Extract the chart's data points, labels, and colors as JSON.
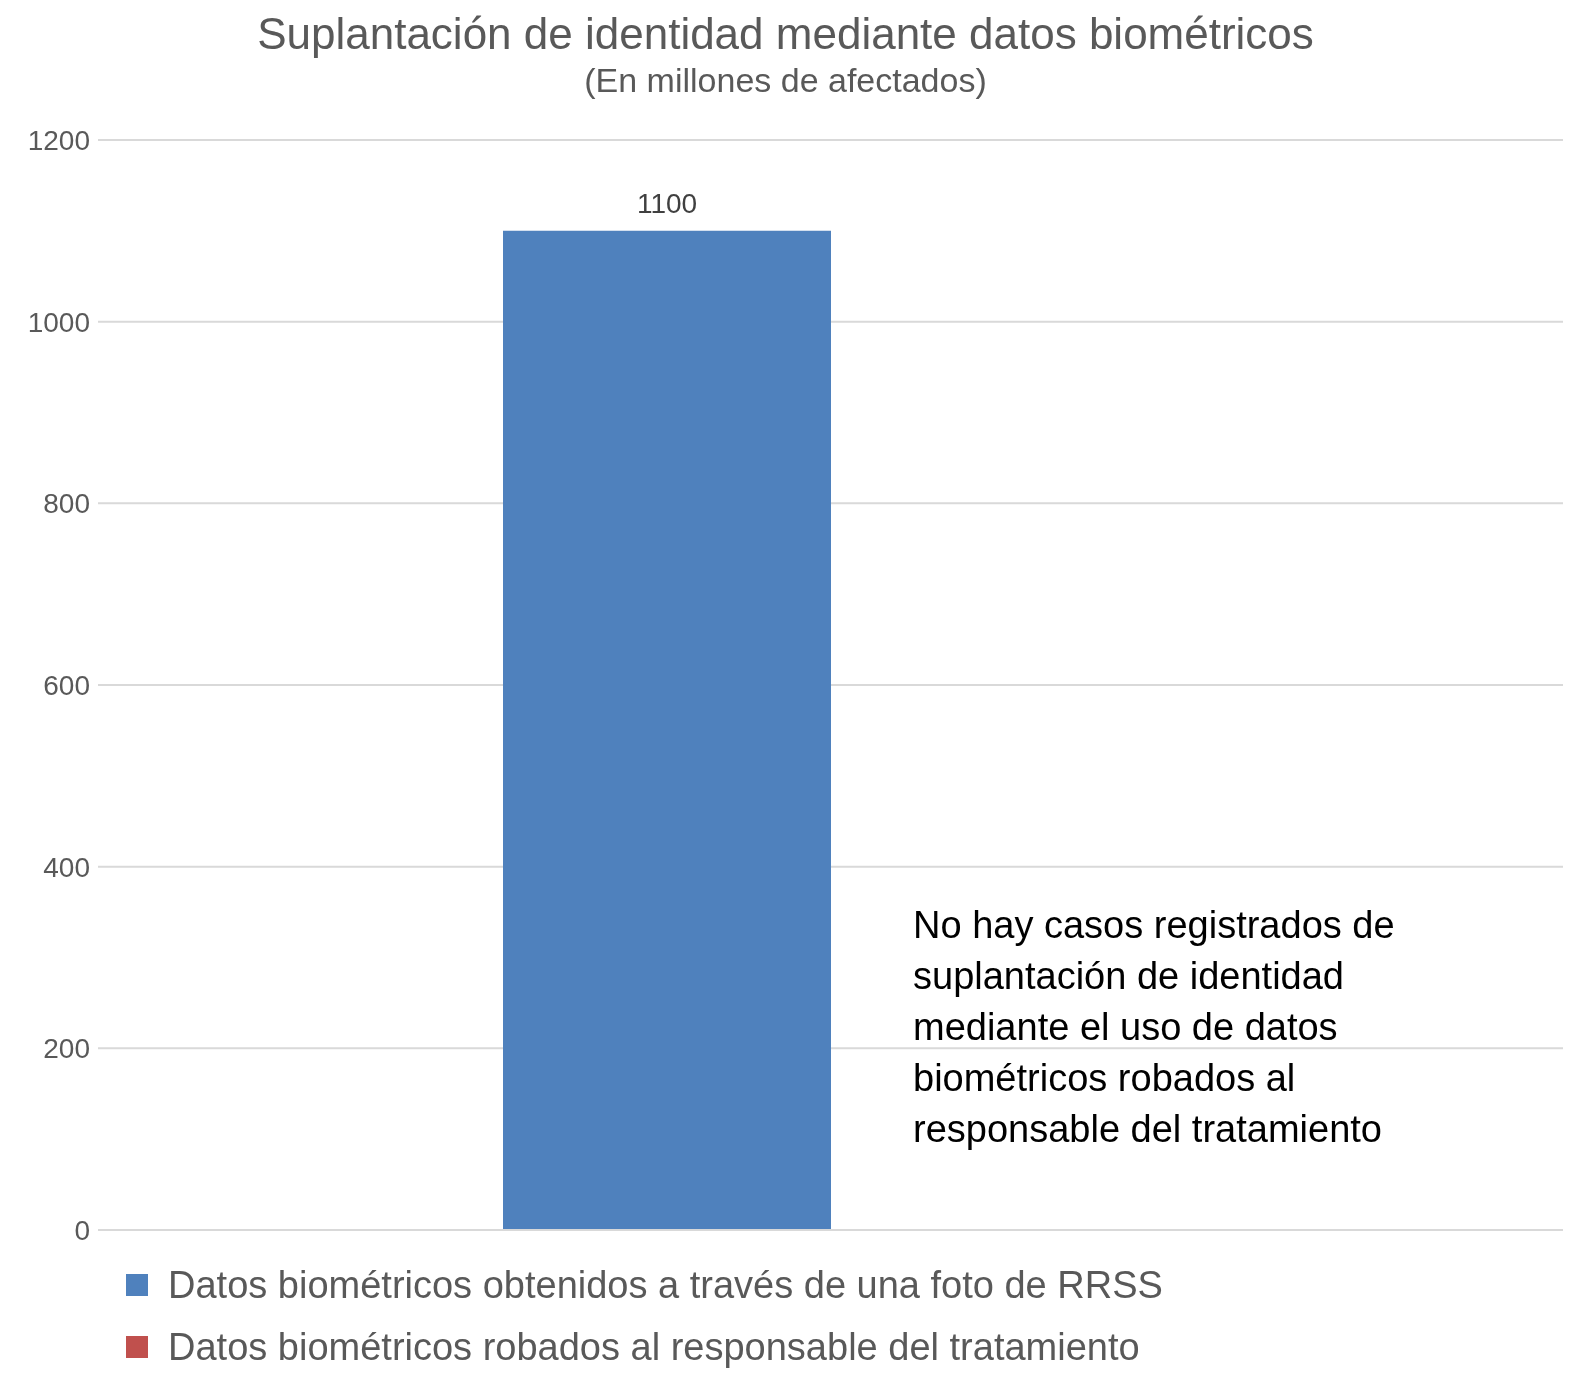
{
  "chart_data": {
    "type": "bar",
    "title": "Suplantación de identidad mediante datos biométricos",
    "subtitle": "(En millones de afectados)",
    "categories": [
      null
    ],
    "series": [
      {
        "name": "Datos biométricos obtenidos a través de una foto de RRSS",
        "color": "#4f81bd",
        "values": [
          1100
        ],
        "value_labels": [
          "1100"
        ]
      },
      {
        "name": "Datos biométricos robados al responsable del tratamiento",
        "color": "#c0504d",
        "values": [
          0
        ],
        "value_labels": [
          null
        ]
      }
    ],
    "ylim": [
      0,
      1200
    ],
    "yticks": [
      0,
      200,
      400,
      600,
      800,
      1000,
      1200
    ],
    "grid": "y",
    "legend": "bottom",
    "annotations": [
      "No hay casos registrados de suplantación de identidad mediante el uso de datos biométricos robados al responsable del tratamiento"
    ]
  }
}
